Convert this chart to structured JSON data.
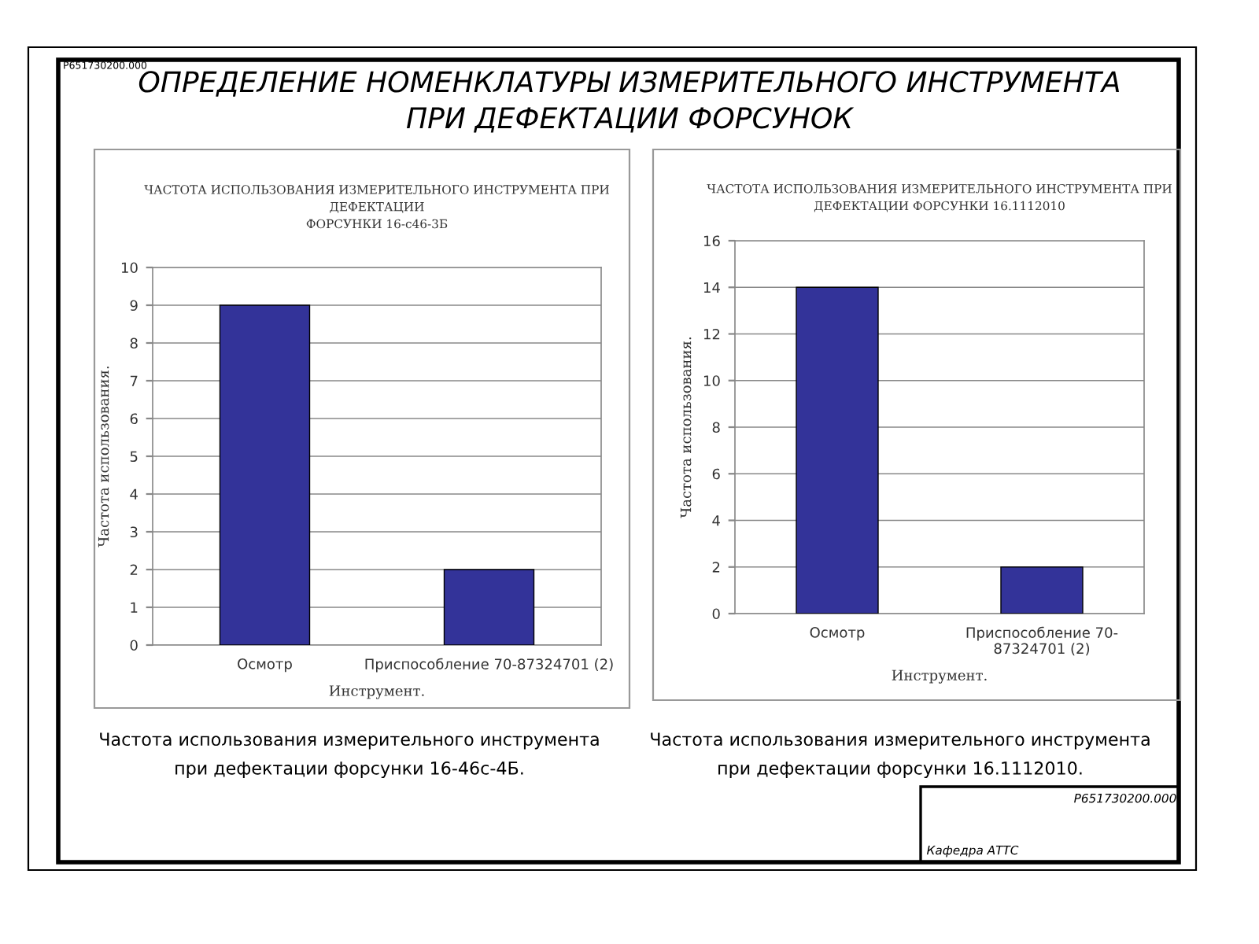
{
  "chart_data": [
    {
      "type": "bar",
      "title": "ЧАСТОТА ИСПОЛЬЗОВАНИЯ ИЗМЕРИТЕЛЬНОГО ИНСТРУМЕНТА ПРИ\nДЕФЕКТАЦИИ\nФОРСУНКИ 16-с46-3Б",
      "xlabel": "Инструмент.",
      "ylabel": "Частота использования.",
      "categories": [
        "Осмотр",
        "Приспособление 70-87324701 (2)"
      ],
      "values": [
        9,
        2
      ],
      "color": "#333399",
      "ylim": [
        0,
        10
      ],
      "yticks": [
        0,
        1,
        2,
        3,
        4,
        5,
        6,
        7,
        8,
        9,
        10
      ],
      "grid": "y",
      "annotations": [
        "ОПРЕДЕЛЕНИЕ НОМЕНКЛАТУРЫ ИЗМЕРИТЕЛЬНОГО ИНСТРУМЕНТА\nПРИ ДЕФЕКТАЦИИ ФОРСУНОК",
        "Р651730200.000",
        "Частота использования измерительного инструмента\nпри дефектации форсунки 16-46с-4Б."
      ]
    },
    {
      "type": "bar",
      "title": "ЧАСТОТА ИСПОЛЬЗОВАНИЯ ИЗМЕРИТЕЛЬНОГО ИНСТРУМЕНТА ПРИ\nДЕФЕКТАЦИИ ФОРСУНКИ 16.1112010",
      "xlabel": "Инструмент.",
      "ylabel": "Частота использования.",
      "categories": [
        "Осмотр",
        "Приспособление 70-\n87324701 (2)"
      ],
      "values": [
        14,
        2
      ],
      "color": "#333399",
      "ylim": [
        0,
        16
      ],
      "yticks": [
        0,
        2,
        4,
        6,
        8,
        10,
        12,
        14,
        16
      ],
      "grid": "y",
      "annotations": [
        "Частота использования измерительного инструмента\nпри дефектации форсунки 16.1112010.",
        "Р651730200.000",
        "Кафедра АТТС"
      ]
    }
  ]
}
